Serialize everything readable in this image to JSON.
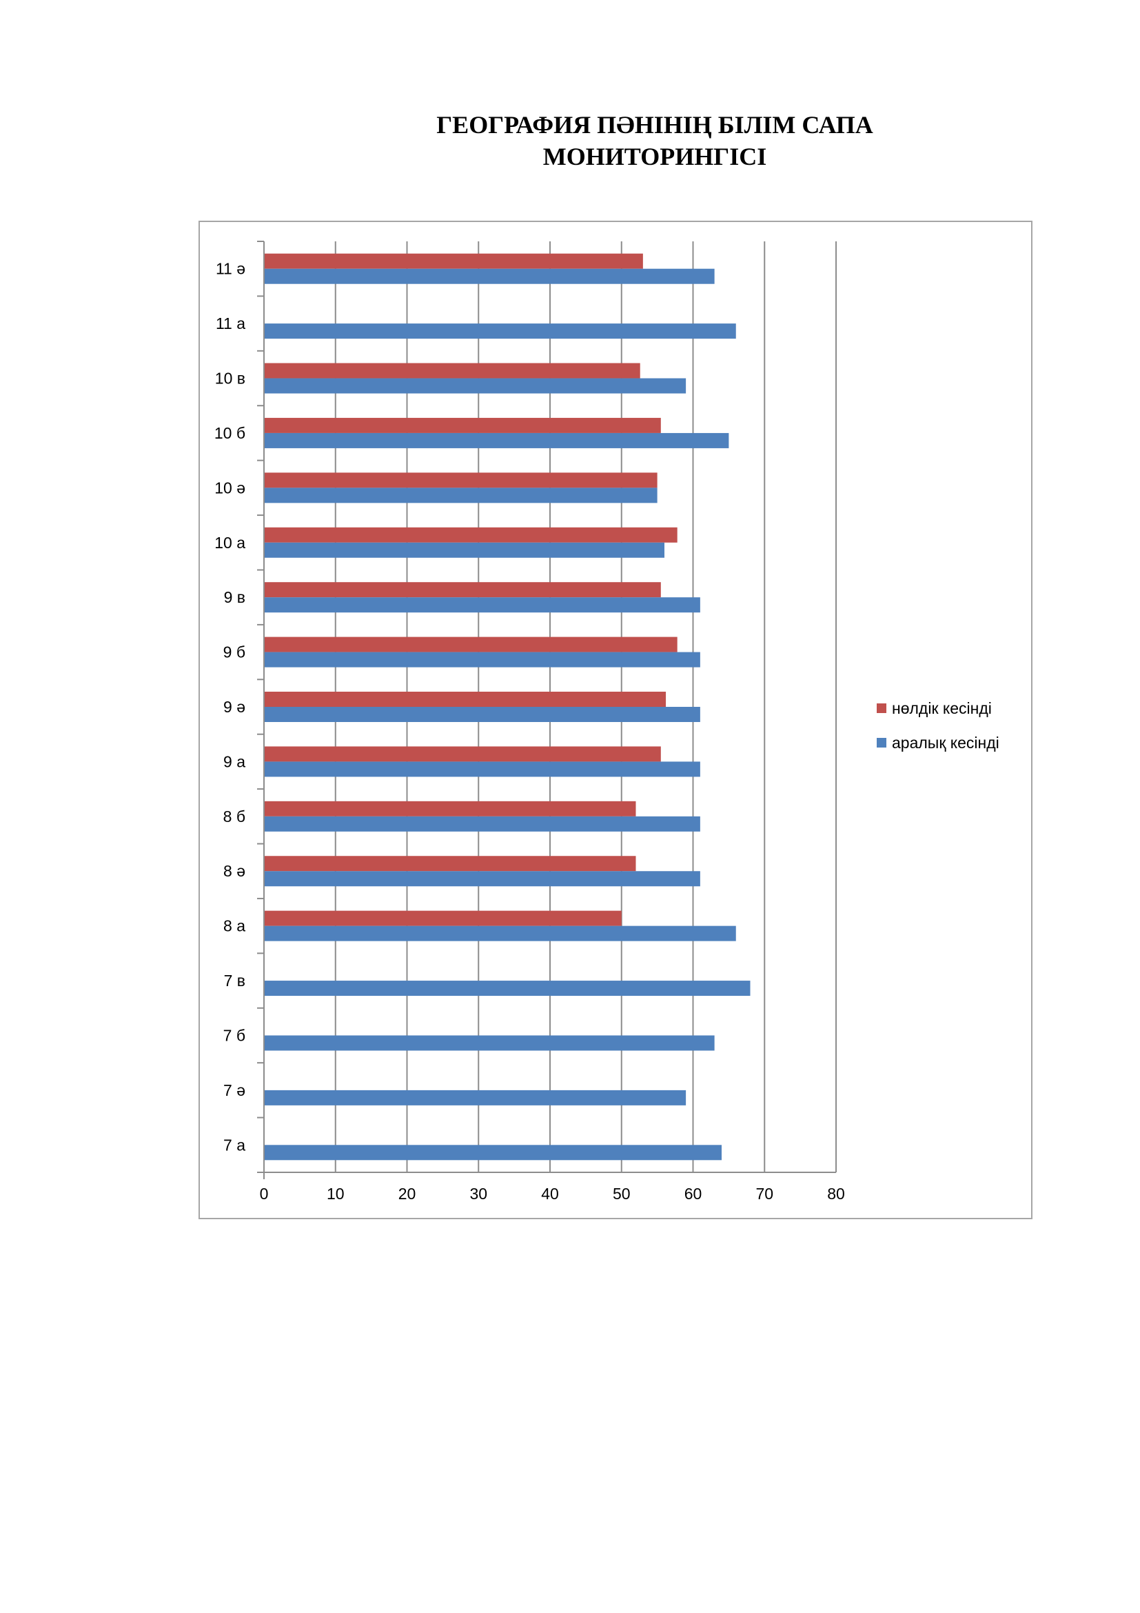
{
  "document": {
    "title_line1": "ГЕОГРАФИЯ ПӘНІНІҢ БІЛІМ САПА",
    "title_line2": "МОНИТОРИНГІСІ"
  },
  "chart_data": {
    "type": "bar",
    "orientation": "horizontal",
    "title": "ГЕОГРАФИЯ ПӘНІНІҢ БІЛІМ САПА МОНИТОРИНГІСІ",
    "categories": [
      "7 а",
      "7 ә",
      "7 б",
      "7 в",
      "8 а",
      "8 ә",
      "8 б",
      "9 а",
      "9 ә",
      "9 б",
      "9 в",
      "10 а",
      "10 ә",
      "10 б",
      "10 в",
      "11 а",
      "11 ә"
    ],
    "series": [
      {
        "name": "аралық кесінді",
        "color": "#4f81bd",
        "values": [
          64,
          59,
          63,
          68,
          66,
          61,
          61,
          61,
          61,
          61,
          61,
          56,
          55,
          65,
          59,
          66,
          63
        ]
      },
      {
        "name": "нөлдік кесінді",
        "color": "#c0504d",
        "values": [
          null,
          null,
          null,
          null,
          50,
          52,
          52,
          55.5,
          56.2,
          57.8,
          55.5,
          57.8,
          55,
          55.5,
          52.6,
          null,
          53
        ]
      }
    ],
    "xlim": [
      0,
      80
    ],
    "x_ticks": [
      0,
      10,
      20,
      30,
      40,
      50,
      60,
      70,
      80
    ],
    "xlabel": "",
    "ylabel": "",
    "grid": "vertical",
    "legend_position": "right",
    "legend_order": [
      "нөлдік кесінді",
      "аралық кесінді"
    ]
  }
}
